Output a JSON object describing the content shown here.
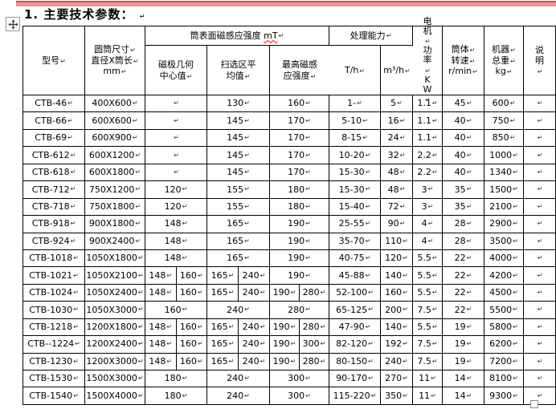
{
  "page": {
    "title": "1. 主要技术参数：",
    "accent_bar_color": "#e59a97"
  },
  "marks": {
    "cell_end": "↵"
  },
  "icons": {
    "move_handle": "table-move-handle-icon",
    "resize_handle": "table-resize-handle"
  },
  "table": {
    "header": {
      "model": "型号",
      "size_lines": [
        "圆筒尺寸",
        "直径X筒长",
        "mm"
      ],
      "magnetic_group": {
        "text": "筒表面磁感应强度",
        "unit": "mT"
      },
      "pole_lines": [
        "磁极几何",
        "中心值"
      ],
      "sweep_lines": [
        "扫选区平",
        "均值"
      ],
      "max_lines": [
        "最高磁感",
        "应强度"
      ],
      "capacity_group": "处理能力",
      "th": "T/h",
      "m3h": "m³/h",
      "power_paras": [
        "电机",
        "功率",
        "KW"
      ],
      "speed_paras": [
        "筒体",
        "转速",
        "r/min"
      ],
      "weight_paras": [
        "机器",
        "总重",
        "kg"
      ],
      "note_para": "说明"
    },
    "rows": [
      {
        "model": "CTB-46",
        "size": "400X600",
        "pole": "",
        "sweep": "130",
        "max": "160",
        "th": "1-",
        "m3h": "5",
        "power": "1.1",
        "speed": "45",
        "weight": "600",
        "note": ""
      },
      {
        "model": "CTB-66",
        "size": "600X600",
        "pole": "",
        "sweep": "145",
        "max": "170",
        "th": "5-10",
        "m3h": "16",
        "power": "1.1",
        "speed": "40",
        "weight": "750",
        "note": ""
      },
      {
        "model": "CTB-69",
        "size": "600X900",
        "pole": "",
        "sweep": "145",
        "max": "170",
        "th": "8-15",
        "m3h": "24",
        "power": "1.1",
        "speed": "40",
        "weight": "850",
        "note": ""
      },
      {
        "model": "CTB-612",
        "size": "600X1200",
        "pole": "",
        "sweep": "145",
        "max": "170",
        "th": "10-20",
        "m3h": "32",
        "power": "2.2",
        "speed": "40",
        "weight": "1000",
        "note": ""
      },
      {
        "model": "CTB-618",
        "size": "600X1800",
        "pole": "",
        "sweep": "145",
        "max": "170",
        "th": "15-30",
        "m3h": "48",
        "power": "2.2",
        "speed": "40",
        "weight": "1340",
        "note": ""
      },
      {
        "model": "CTB-712",
        "size": "750X1200",
        "pole": "120",
        "sweep": "155",
        "max": "180",
        "th": "15-30",
        "m3h": "48",
        "power": "3",
        "speed": "35",
        "weight": "1500",
        "note": ""
      },
      {
        "model": "CTB-718",
        "size": "750X1800",
        "pole": "120",
        "sweep": "155",
        "max": "180",
        "th": "15-40",
        "m3h": "72",
        "power": "3",
        "speed": "35",
        "weight": "2100",
        "note": ""
      },
      {
        "model": "CTB-918",
        "size": "900X1800",
        "pole": "148",
        "sweep": "165",
        "max": "190",
        "th": "25-55",
        "m3h": "90",
        "power": "4",
        "speed": "28",
        "weight": "2900",
        "note": ""
      },
      {
        "model": "CTB-924",
        "size": "900X2400",
        "pole": "148",
        "sweep": "165",
        "max": "190",
        "th": "35-70",
        "m3h": "110",
        "power": "4",
        "speed": "28",
        "weight": "3500",
        "note": ""
      },
      {
        "model": "CTB-1018",
        "size": "1050X1800",
        "pole": "148",
        "sweep": "165",
        "max": "190",
        "th": "40-75",
        "m3h": "120",
        "power": "5.5",
        "speed": "22",
        "weight": "4000",
        "note": ""
      },
      {
        "model": "CTB-1021",
        "size": "1050X2100",
        "pole": [
          "148",
          "160"
        ],
        "sweep": [
          "165",
          "240"
        ],
        "max": "190",
        "th": "45-88",
        "m3h": "140",
        "power": "5.5",
        "speed": "22",
        "weight": "4200",
        "note": ""
      },
      {
        "model": "CTB-1024",
        "size": "1050X2400",
        "pole": [
          "148",
          "160"
        ],
        "sweep": [
          "165",
          "240"
        ],
        "max": [
          "190",
          "280"
        ],
        "th": "52-100",
        "m3h": "160",
        "power": "5.5",
        "speed": "22",
        "weight": "4500",
        "note": ""
      },
      {
        "model": "CTB-1030",
        "size": "1050X3000",
        "pole": "160",
        "sweep": "240",
        "max": "280",
        "th": "65-125",
        "m3h": "200",
        "power": "7.5",
        "speed": "22",
        "weight": "5500",
        "note": ""
      },
      {
        "model": "CTB-1218",
        "size": "1200X1800",
        "pole": [
          "148",
          "160"
        ],
        "sweep": [
          "165",
          "240"
        ],
        "max": [
          "190",
          "280"
        ],
        "th": "47-90",
        "m3h": "140",
        "power": "5.5",
        "speed": "19",
        "weight": "5800",
        "note": ""
      },
      {
        "model": "CTB--1224",
        "size": "1200X2400",
        "pole": [
          "148",
          "160"
        ],
        "sweep": [
          "165",
          "240"
        ],
        "max": [
          "190",
          "300"
        ],
        "th": "82-120",
        "m3h": "192",
        "power": "7.5",
        "speed": "19",
        "weight": "6200",
        "note": ""
      },
      {
        "model": "CTB-1230",
        "size": "1200X3000",
        "pole": [
          "148",
          "160"
        ],
        "sweep": [
          "165",
          "240"
        ],
        "max": [
          "190",
          "280"
        ],
        "th": "80-150",
        "m3h": "240",
        "power": "7.5",
        "speed": "19",
        "weight": "7200",
        "note": ""
      },
      {
        "model": "CTB-1530",
        "size": "1500X3000",
        "pole": "180",
        "sweep": "240",
        "max": "300",
        "th": "90-170",
        "m3h": "270",
        "power": "11",
        "speed": "14",
        "weight": "8100",
        "note": ""
      },
      {
        "model": "CTB-1540",
        "size": "1500X4000",
        "pole": "180",
        "sweep": "240",
        "max": "300",
        "th": "115-220",
        "m3h": "350",
        "power": "11",
        "speed": "14",
        "weight": "9300",
        "note": ""
      }
    ]
  }
}
